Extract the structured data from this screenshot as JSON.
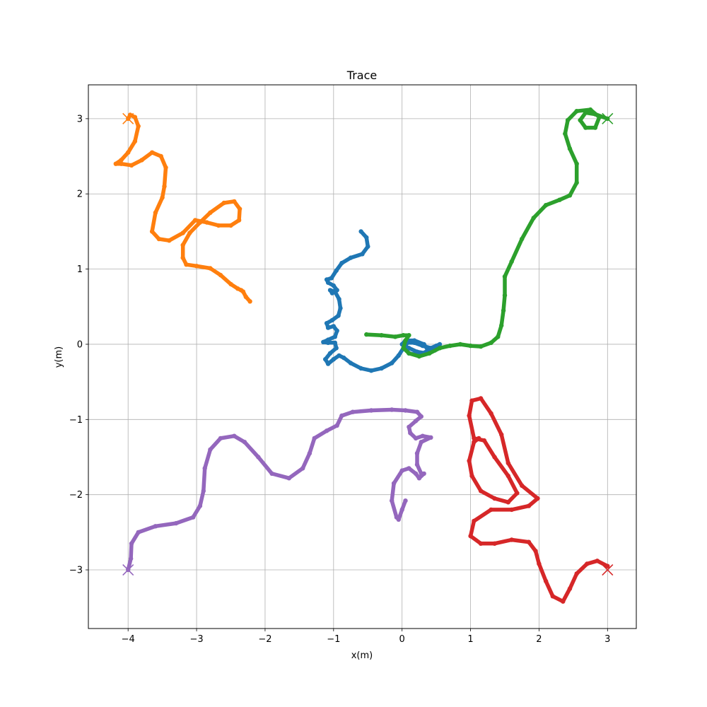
{
  "chart_data": {
    "type": "scatter",
    "title": "Trace",
    "xlabel": "x(m)",
    "ylabel": "y(m)",
    "xlim": [
      -4.58,
      3.42
    ],
    "ylim": [
      -3.78,
      3.45
    ],
    "xticks": [
      -4,
      -3,
      -2,
      -1,
      0,
      1,
      2,
      3
    ],
    "yticks": [
      -3,
      -2,
      -1,
      0,
      1,
      2,
      3
    ],
    "xtick_labels": [
      "−4",
      "−3",
      "−2",
      "−1",
      "0",
      "1",
      "2",
      "3"
    ],
    "ytick_labels": [
      "−3",
      "−2",
      "−1",
      "0",
      "1",
      "2",
      "3"
    ],
    "grid": true,
    "targets": [
      {
        "color": "#ff7f0e",
        "x": -4,
        "y": 3
      },
      {
        "color": "#2ca02c",
        "x": 3,
        "y": 3
      },
      {
        "color": "#d62728",
        "x": 3,
        "y": -3
      },
      {
        "color": "#9467bd",
        "x": -4,
        "y": -3
      }
    ],
    "series": [
      {
        "color": "#1f77b4",
        "points": [
          [
            -0.6,
            1.5
          ],
          [
            -0.52,
            1.42
          ],
          [
            -0.5,
            1.3
          ],
          [
            -0.58,
            1.2
          ],
          [
            -0.75,
            1.15
          ],
          [
            -0.88,
            1.08
          ],
          [
            -0.96,
            0.98
          ],
          [
            -1.03,
            0.88
          ],
          [
            -1.1,
            0.86
          ],
          [
            -1.08,
            0.82
          ],
          [
            -1.0,
            0.78
          ],
          [
            -0.95,
            0.72
          ],
          [
            -1.02,
            0.68
          ],
          [
            -1.05,
            0.72
          ],
          [
            -0.98,
            0.7
          ],
          [
            -0.92,
            0.6
          ],
          [
            -0.9,
            0.48
          ],
          [
            -0.93,
            0.38
          ],
          [
            -1.02,
            0.32
          ],
          [
            -1.1,
            0.28
          ],
          [
            -1.08,
            0.22
          ],
          [
            -1.0,
            0.24
          ],
          [
            -0.95,
            0.18
          ],
          [
            -0.98,
            0.1
          ],
          [
            -1.08,
            0.06
          ],
          [
            -1.15,
            0.03
          ],
          [
            -1.08,
            0.02
          ],
          [
            -0.98,
            0.02
          ],
          [
            -0.96,
            -0.05
          ],
          [
            -1.05,
            -0.12
          ],
          [
            -1.12,
            -0.2
          ],
          [
            -1.08,
            -0.26
          ],
          [
            -1.0,
            -0.2
          ],
          [
            -0.92,
            -0.15
          ],
          [
            -0.85,
            -0.18
          ],
          [
            -0.75,
            -0.25
          ],
          [
            -0.6,
            -0.32
          ],
          [
            -0.45,
            -0.35
          ],
          [
            -0.3,
            -0.32
          ],
          [
            -0.15,
            -0.25
          ],
          [
            -0.05,
            -0.15
          ],
          [
            0.02,
            -0.05
          ],
          [
            0.08,
            0.02
          ],
          [
            0.18,
            0.02
          ],
          [
            0.3,
            -0.02
          ],
          [
            0.42,
            -0.05
          ],
          [
            0.5,
            -0.02
          ],
          [
            0.55,
            0.0
          ],
          [
            0.48,
            -0.08
          ],
          [
            0.35,
            -0.12
          ],
          [
            0.22,
            -0.1
          ],
          [
            0.1,
            -0.05
          ],
          [
            0.03,
            -0.02
          ],
          [
            0.1,
            -0.12
          ],
          [
            0.25,
            -0.15
          ],
          [
            0.38,
            -0.08
          ],
          [
            0.32,
            0.0
          ],
          [
            0.18,
            0.05
          ],
          [
            0.05,
            0.05
          ],
          [
            0.0,
            0.0
          ]
        ]
      },
      {
        "color": "#ff7f0e",
        "points": [
          [
            -2.22,
            0.57
          ],
          [
            -2.28,
            0.63
          ],
          [
            -2.32,
            0.7
          ],
          [
            -2.35,
            0.72
          ],
          [
            -2.4,
            0.74
          ],
          [
            -2.5,
            0.8
          ],
          [
            -2.65,
            0.92
          ],
          [
            -2.8,
            1.01
          ],
          [
            -3.0,
            1.04
          ],
          [
            -3.15,
            1.06
          ],
          [
            -3.2,
            1.15
          ],
          [
            -3.2,
            1.32
          ],
          [
            -3.1,
            1.48
          ],
          [
            -2.95,
            1.62
          ],
          [
            -2.8,
            1.75
          ],
          [
            -2.6,
            1.88
          ],
          [
            -2.45,
            1.9
          ],
          [
            -2.37,
            1.8
          ],
          [
            -2.38,
            1.65
          ],
          [
            -2.5,
            1.58
          ],
          [
            -2.68,
            1.58
          ],
          [
            -2.85,
            1.62
          ],
          [
            -3.02,
            1.65
          ],
          [
            -3.2,
            1.48
          ],
          [
            -3.4,
            1.38
          ],
          [
            -3.55,
            1.4
          ],
          [
            -3.65,
            1.5
          ],
          [
            -3.6,
            1.75
          ],
          [
            -3.5,
            1.95
          ],
          [
            -3.47,
            2.1
          ],
          [
            -3.45,
            2.35
          ],
          [
            -3.52,
            2.5
          ],
          [
            -3.65,
            2.55
          ],
          [
            -3.8,
            2.45
          ],
          [
            -3.95,
            2.38
          ],
          [
            -4.1,
            2.4
          ],
          [
            -4.18,
            2.4
          ],
          [
            -4.1,
            2.45
          ],
          [
            -4.0,
            2.55
          ],
          [
            -3.9,
            2.7
          ],
          [
            -3.85,
            2.9
          ],
          [
            -3.9,
            3.02
          ],
          [
            -3.97,
            3.05
          ],
          [
            -4.0,
            3.0
          ]
        ]
      },
      {
        "color": "#2ca02c",
        "points": [
          [
            -0.52,
            0.13
          ],
          [
            -0.3,
            0.12
          ],
          [
            -0.1,
            0.1
          ],
          [
            0.02,
            0.12
          ],
          [
            0.1,
            0.12
          ],
          [
            0.05,
            0.05
          ],
          [
            0.02,
            -0.05
          ],
          [
            0.1,
            -0.12
          ],
          [
            0.25,
            -0.16
          ],
          [
            0.4,
            -0.12
          ],
          [
            0.55,
            -0.05
          ],
          [
            0.7,
            -0.02
          ],
          [
            0.85,
            0.0
          ],
          [
            1.0,
            -0.02
          ],
          [
            1.15,
            -0.03
          ],
          [
            1.3,
            0.02
          ],
          [
            1.4,
            0.1
          ],
          [
            1.45,
            0.25
          ],
          [
            1.48,
            0.45
          ],
          [
            1.5,
            0.65
          ],
          [
            1.5,
            0.9
          ],
          [
            1.6,
            1.1
          ],
          [
            1.75,
            1.4
          ],
          [
            1.92,
            1.68
          ],
          [
            2.1,
            1.85
          ],
          [
            2.3,
            1.92
          ],
          [
            2.45,
            1.98
          ],
          [
            2.55,
            2.15
          ],
          [
            2.55,
            2.4
          ],
          [
            2.45,
            2.6
          ],
          [
            2.38,
            2.8
          ],
          [
            2.42,
            2.98
          ],
          [
            2.55,
            3.1
          ],
          [
            2.75,
            3.12
          ],
          [
            2.88,
            3.02
          ],
          [
            2.82,
            2.88
          ],
          [
            2.68,
            2.88
          ],
          [
            2.6,
            2.98
          ],
          [
            2.68,
            3.08
          ],
          [
            2.82,
            3.06
          ],
          [
            3.0,
            3.0
          ]
        ]
      },
      {
        "color": "#d62728",
        "points": [
          [
            3.0,
            -2.95
          ],
          [
            2.85,
            -2.88
          ],
          [
            2.7,
            -2.92
          ],
          [
            2.55,
            -3.05
          ],
          [
            2.45,
            -3.25
          ],
          [
            2.35,
            -3.42
          ],
          [
            2.2,
            -3.35
          ],
          [
            2.1,
            -3.15
          ],
          [
            2.0,
            -2.92
          ],
          [
            1.95,
            -2.75
          ],
          [
            1.85,
            -2.63
          ],
          [
            1.6,
            -2.6
          ],
          [
            1.35,
            -2.65
          ],
          [
            1.15,
            -2.65
          ],
          [
            1.0,
            -2.55
          ],
          [
            1.05,
            -2.35
          ],
          [
            1.3,
            -2.2
          ],
          [
            1.6,
            -2.2
          ],
          [
            1.85,
            -2.15
          ],
          [
            1.98,
            -2.05
          ],
          [
            1.75,
            -1.88
          ],
          [
            1.55,
            -1.58
          ],
          [
            1.45,
            -1.2
          ],
          [
            1.3,
            -0.92
          ],
          [
            1.15,
            -0.72
          ],
          [
            1.02,
            -0.75
          ],
          [
            0.98,
            -0.95
          ],
          [
            1.05,
            -1.25
          ],
          [
            1.2,
            -1.28
          ],
          [
            1.35,
            -1.5
          ],
          [
            1.55,
            -1.75
          ],
          [
            1.68,
            -1.98
          ],
          [
            1.55,
            -2.1
          ],
          [
            1.35,
            -2.05
          ],
          [
            1.15,
            -1.95
          ],
          [
            1.02,
            -1.75
          ],
          [
            0.98,
            -1.55
          ],
          [
            1.05,
            -1.3
          ],
          [
            1.12,
            -1.25
          ]
        ]
      },
      {
        "color": "#9467bd",
        "points": [
          [
            -4.0,
            -3.0
          ],
          [
            -3.96,
            -2.85
          ],
          [
            -3.95,
            -2.65
          ],
          [
            -3.85,
            -2.5
          ],
          [
            -3.6,
            -2.42
          ],
          [
            -3.3,
            -2.38
          ],
          [
            -3.05,
            -2.3
          ],
          [
            -2.95,
            -2.15
          ],
          [
            -2.9,
            -1.95
          ],
          [
            -2.88,
            -1.65
          ],
          [
            -2.8,
            -1.4
          ],
          [
            -2.65,
            -1.25
          ],
          [
            -2.45,
            -1.22
          ],
          [
            -2.3,
            -1.3
          ],
          [
            -2.1,
            -1.5
          ],
          [
            -1.9,
            -1.72
          ],
          [
            -1.65,
            -1.78
          ],
          [
            -1.45,
            -1.65
          ],
          [
            -1.35,
            -1.45
          ],
          [
            -1.28,
            -1.25
          ],
          [
            -1.1,
            -1.15
          ],
          [
            -0.95,
            -1.08
          ],
          [
            -0.88,
            -0.95
          ],
          [
            -0.72,
            -0.9
          ],
          [
            -0.45,
            -0.88
          ],
          [
            -0.15,
            -0.87
          ],
          [
            0.05,
            -0.88
          ],
          [
            0.22,
            -0.9
          ],
          [
            0.28,
            -0.96
          ],
          [
            0.2,
            -1.02
          ],
          [
            0.1,
            -1.1
          ],
          [
            0.12,
            -1.18
          ],
          [
            0.2,
            -1.25
          ],
          [
            0.3,
            -1.22
          ],
          [
            0.42,
            -1.24
          ],
          [
            0.28,
            -1.3
          ],
          [
            0.22,
            -1.45
          ],
          [
            0.22,
            -1.6
          ],
          [
            0.28,
            -1.72
          ],
          [
            0.32,
            -1.72
          ],
          [
            0.25,
            -1.78
          ],
          [
            0.2,
            -1.72
          ],
          [
            0.1,
            -1.65
          ],
          [
            0.0,
            -1.68
          ],
          [
            -0.12,
            -1.85
          ],
          [
            -0.15,
            -2.08
          ],
          [
            -0.08,
            -2.3
          ],
          [
            -0.05,
            -2.33
          ],
          [
            0.0,
            -2.2
          ],
          [
            0.05,
            -2.08
          ]
        ]
      }
    ]
  }
}
